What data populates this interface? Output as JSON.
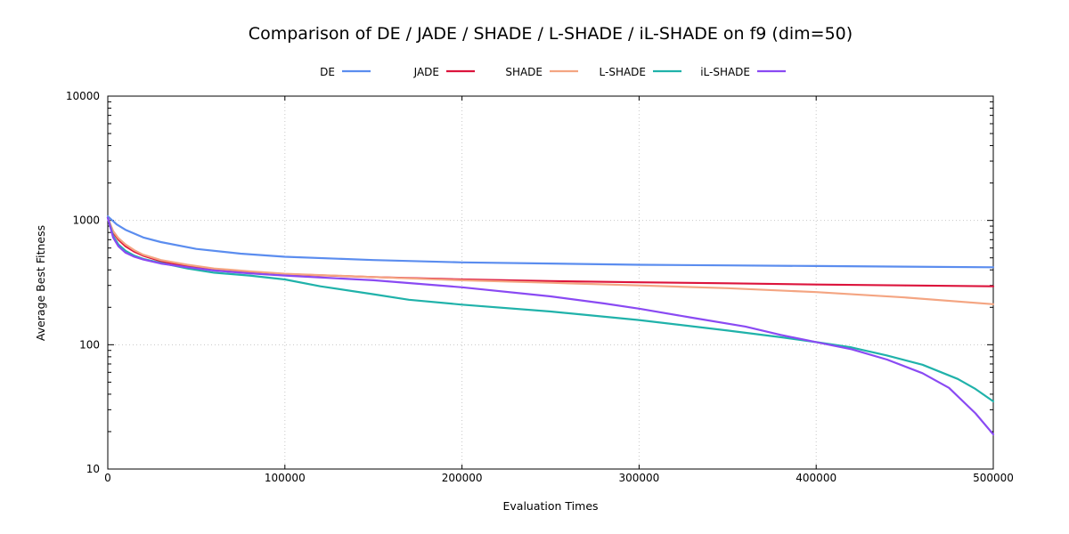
{
  "chart_data": {
    "type": "line",
    "title": "Comparison of DE / JADE / SHADE / L-SHADE / iL-SHADE on f9 (dim=50)",
    "xlabel": "Evaluation Times",
    "ylabel": "Average Best Fitness",
    "xlim": [
      0,
      500000
    ],
    "ylim": [
      10,
      10000
    ],
    "yscale": "log",
    "xticks": [
      "0",
      "100000",
      "200000",
      "300000",
      "400000",
      "500000"
    ],
    "yticks": [
      "10",
      "100",
      "1000",
      "10000"
    ],
    "grid": true,
    "legend_position": "top-center",
    "series": [
      {
        "name": "DE",
        "color": "#5b8def",
        "x": [
          0,
          5000,
          10000,
          20000,
          30000,
          50000,
          75000,
          100000,
          150000,
          200000,
          250000,
          300000,
          350000,
          400000,
          450000,
          500000
        ],
        "y": [
          1080,
          930,
          840,
          730,
          670,
          590,
          540,
          510,
          480,
          460,
          450,
          440,
          435,
          430,
          425,
          420
        ]
      },
      {
        "name": "JADE",
        "color": "#dc143c",
        "x": [
          0,
          3000,
          6000,
          10000,
          15000,
          20000,
          30000,
          45000,
          60000,
          80000,
          100000,
          150000,
          200000,
          250000,
          300000,
          350000,
          400000,
          450000,
          500000
        ],
        "y": [
          1050,
          800,
          700,
          620,
          560,
          520,
          470,
          430,
          405,
          385,
          370,
          350,
          335,
          325,
          318,
          312,
          305,
          300,
          295
        ]
      },
      {
        "name": "SHADE",
        "color": "#f4a582",
        "x": [
          0,
          3000,
          6000,
          10000,
          15000,
          20000,
          30000,
          45000,
          60000,
          80000,
          100000,
          150000,
          200000,
          250000,
          300000,
          350000,
          400000,
          450000,
          500000
        ],
        "y": [
          1050,
          820,
          720,
          640,
          575,
          530,
          480,
          440,
          410,
          390,
          372,
          350,
          330,
          315,
          300,
          285,
          265,
          240,
          212
        ]
      },
      {
        "name": "L-SHADE",
        "color": "#20b2aa",
        "x": [
          0,
          3000,
          6000,
          10000,
          15000,
          20000,
          30000,
          45000,
          60000,
          80000,
          100000,
          120000,
          150000,
          170000,
          200000,
          250000,
          300000,
          350000,
          380000,
          400000,
          420000,
          440000,
          460000,
          480000,
          490000,
          500000
        ],
        "y": [
          1050,
          750,
          640,
          570,
          520,
          490,
          455,
          410,
          380,
          360,
          335,
          295,
          255,
          230,
          210,
          185,
          158,
          130,
          115,
          105,
          95,
          82,
          69,
          53,
          44,
          35
        ]
      },
      {
        "name": "iL-SHADE",
        "color": "#8a4af3",
        "x": [
          0,
          3000,
          6000,
          10000,
          15000,
          20000,
          30000,
          45000,
          60000,
          80000,
          100000,
          150000,
          200000,
          250000,
          280000,
          300000,
          330000,
          360000,
          380000,
          400000,
          420000,
          440000,
          460000,
          475000,
          490000,
          500000
        ],
        "y": [
          1050,
          730,
          620,
          550,
          510,
          485,
          450,
          420,
          395,
          375,
          360,
          330,
          290,
          245,
          215,
          195,
          165,
          140,
          120,
          105,
          92,
          76,
          59,
          45,
          28,
          19
        ]
      }
    ]
  }
}
